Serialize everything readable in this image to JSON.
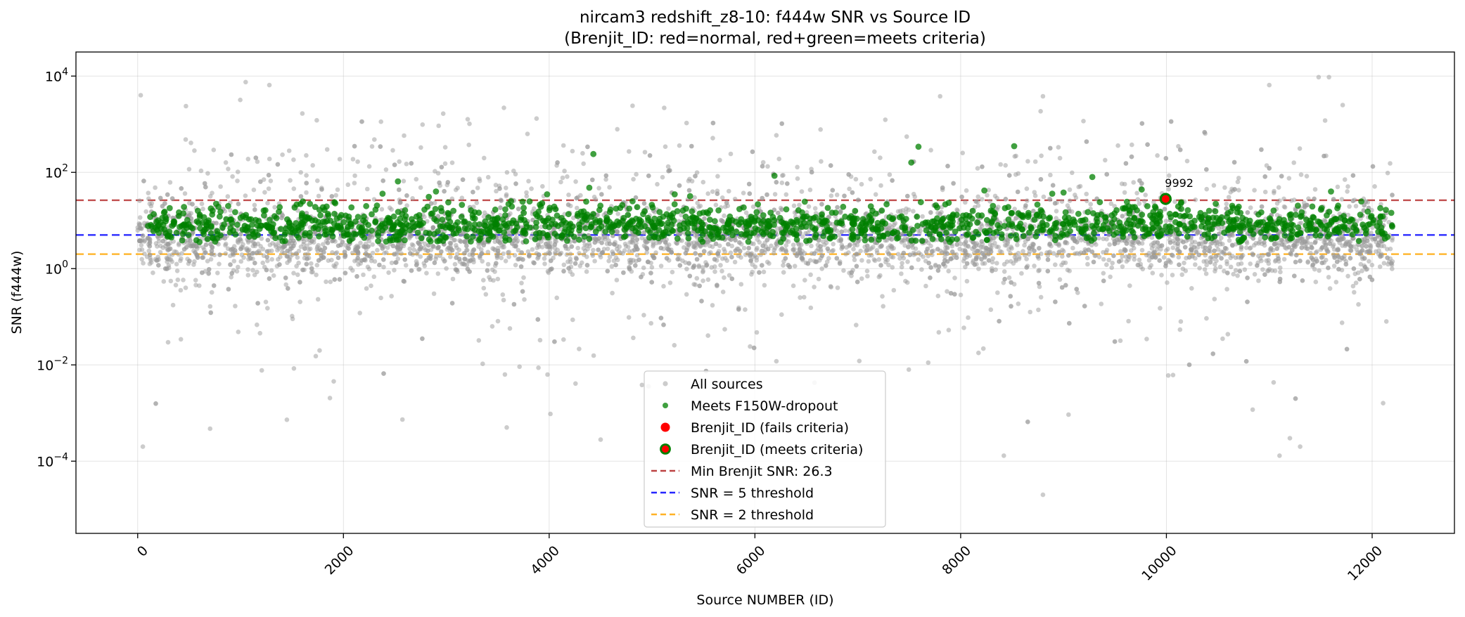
{
  "chart_data": {
    "type": "scatter",
    "title_line1": "nircam3 redshift_z8-10: f444w SNR vs Source ID",
    "title_line2": "(Brenjit_ID: red=normal, red+green=meets criteria)",
    "xlabel": "Source NUMBER (ID)",
    "ylabel": "SNR (f444w)",
    "x_range": [
      -600,
      12800
    ],
    "y_scale": "log",
    "y_range_exp": [
      -5.5,
      4.5
    ],
    "x_ticks": [
      0,
      2000,
      4000,
      6000,
      8000,
      10000,
      12000
    ],
    "y_ticks": [
      {
        "exp": -4,
        "base": "10",
        "sup": "−4"
      },
      {
        "exp": -2,
        "base": "10",
        "sup": "−2"
      },
      {
        "exp": 0,
        "base": "10",
        "sup": "0"
      },
      {
        "exp": 2,
        "base": "10",
        "sup": "2"
      },
      {
        "exp": 4,
        "base": "10",
        "sup": "4"
      }
    ],
    "grid": true,
    "legend_position": "lower-center",
    "source_id_range": [
      0,
      12200
    ],
    "series": [
      {
        "name": "All sources",
        "color": "#999999",
        "opacity": 0.5,
        "approx_count": 12200,
        "typical_snr_range": [
          1,
          10
        ],
        "marker": "small-circle"
      },
      {
        "name": "Meets F150W-dropout",
        "color": "#008000",
        "opacity": 0.75,
        "approx_count": 1500,
        "typical_snr_range": [
          3,
          20
        ],
        "marker": "small-circle"
      },
      {
        "name": "Brenjit_ID (fails criteria)",
        "color": "#ff0000",
        "marker": "circle"
      },
      {
        "name": "Brenjit_ID (meets criteria)",
        "color": "#ff0000",
        "edge_color": "#008000",
        "marker": "circle"
      }
    ],
    "notable_points": [
      {
        "series": "All sources",
        "x": 30,
        "y": 4000
      },
      {
        "series": "All sources",
        "x": 1050,
        "y": 7500
      },
      {
        "series": "All sources",
        "x": 1280,
        "y": 6500
      },
      {
        "series": "All sources",
        "x": 11480,
        "y": 9500
      },
      {
        "series": "All sources",
        "x": 11580,
        "y": 9500
      },
      {
        "series": "All sources",
        "x": 11000,
        "y": 6500
      },
      {
        "series": "All sources",
        "x": 7800,
        "y": 3800
      },
      {
        "series": "All sources",
        "x": 8800,
        "y": 3800
      },
      {
        "series": "All sources",
        "x": 50,
        "y": 0.0002
      },
      {
        "series": "All sources",
        "x": 8800,
        "y": 2e-05
      },
      {
        "series": "All sources",
        "x": 8420,
        "y": 0.00013
      },
      {
        "series": "All sources",
        "x": 4500,
        "y": 0.00028
      },
      {
        "series": "All sources",
        "x": 11200,
        "y": 0.0003
      },
      {
        "series": "All sources",
        "x": 11300,
        "y": 0.0002
      },
      {
        "series": "All sources",
        "x": 11100,
        "y": 0.00013
      },
      {
        "series": "Meets F150W-dropout",
        "x": 4430,
        "y": 240
      },
      {
        "series": "Meets F150W-dropout",
        "x": 7590,
        "y": 340
      },
      {
        "series": "Meets F150W-dropout",
        "x": 8520,
        "y": 350
      },
      {
        "series": "Meets F150W-dropout",
        "x": 7520,
        "y": 160
      },
      {
        "series": "Meets F150W-dropout",
        "x": 6190,
        "y": 85
      },
      {
        "series": "Meets F150W-dropout",
        "x": 9280,
        "y": 80
      },
      {
        "series": "Meets F150W-dropout",
        "x": 2530,
        "y": 65
      },
      {
        "series": "Meets F150W-dropout",
        "x": 4390,
        "y": 48
      },
      {
        "series": "Meets F150W-dropout",
        "x": 9760,
        "y": 44
      },
      {
        "series": "Meets F150W-dropout",
        "x": 8230,
        "y": 42
      },
      {
        "series": "Meets F150W-dropout",
        "x": 2900,
        "y": 40
      },
      {
        "series": "Meets F150W-dropout",
        "x": 11600,
        "y": 40
      },
      {
        "series": "Meets F150W-dropout",
        "x": 2380,
        "y": 36
      },
      {
        "series": "Meets F150W-dropout",
        "x": 3980,
        "y": 35
      },
      {
        "series": "Meets F150W-dropout",
        "x": 9000,
        "y": 38
      },
      {
        "series": "Meets F150W-dropout",
        "x": 8890,
        "y": 36
      },
      {
        "series": "Meets F150W-dropout",
        "x": 5370,
        "y": 32
      },
      {
        "series": "Meets F150W-dropout",
        "x": 2830,
        "y": 31
      },
      {
        "series": "Meets F150W-dropout",
        "x": 5220,
        "y": 35
      },
      {
        "series": "Brenjit_ID (meets criteria)",
        "x": 9992,
        "y": 28
      }
    ],
    "reference_lines": [
      {
        "label": "Min Brenjit SNR: 26.3",
        "y": 26.3,
        "color": "#b22222",
        "style": "dashed"
      },
      {
        "label": "SNR = 5 threshold",
        "y": 5,
        "color": "#0000ff",
        "style": "dashed"
      },
      {
        "label": "SNR = 2 threshold",
        "y": 2,
        "color": "#ffa500",
        "style": "dashed"
      }
    ],
    "annotations": [
      {
        "text": "9992",
        "x": 9992,
        "y": 28
      }
    ]
  }
}
